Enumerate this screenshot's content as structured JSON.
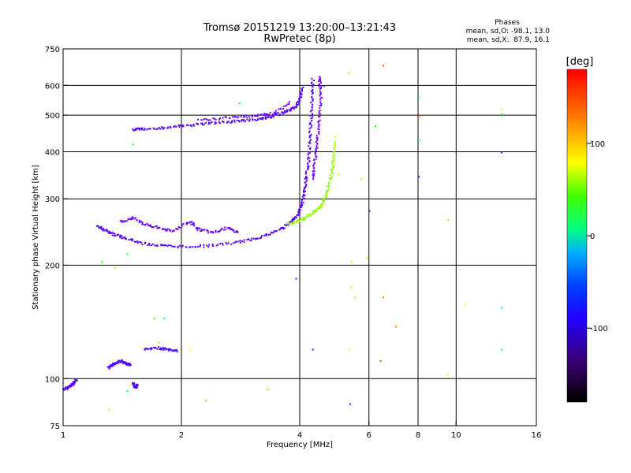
{
  "title": "Tromsø 20151219 13:20:00–13:21:43",
  "subtitle": "RwPretec (8p)",
  "stats": {
    "heading": "Phases",
    "line_o": "mean, sd,O: -98.1, 13.0",
    "line_x": "mean, sd,X:  87.9, 16.1"
  },
  "colorbar": {
    "label": "[deg]",
    "range": [
      -180,
      180
    ],
    "ticks": [
      {
        "value": 100,
        "label": "100"
      },
      {
        "value": 0,
        "label": "0"
      },
      {
        "value": -100,
        "label": "-100"
      }
    ]
  },
  "chart_data": {
    "type": "scatter",
    "xlabel": "Frequency [MHz]",
    "ylabel": "Stationary phase Virtual Height [km]",
    "xscale": "log",
    "yscale": "log",
    "xlim": [
      1,
      16
    ],
    "ylim": [
      75,
      750
    ],
    "x_ticks": [
      {
        "value": 1,
        "label": "1"
      },
      {
        "value": 2,
        "label": "2"
      },
      {
        "value": 4,
        "label": "4"
      },
      {
        "value": 6,
        "label": "6"
      },
      {
        "value": 8,
        "label": "8"
      },
      {
        "value": 10,
        "label": "10"
      },
      {
        "value": 16,
        "label": "16"
      }
    ],
    "x_gridlines": [
      2,
      4,
      6,
      8,
      10
    ],
    "y_ticks": [
      {
        "value": 75,
        "label": "75"
      },
      {
        "value": 100,
        "label": "100"
      },
      {
        "value": 200,
        "label": "200"
      },
      {
        "value": 300,
        "label": "300"
      },
      {
        "value": 400,
        "label": "400"
      },
      {
        "value": 500,
        "label": "500"
      },
      {
        "value": 600,
        "label": "600"
      },
      {
        "value": 750,
        "label": "750"
      }
    ],
    "y_gridlines": [
      100,
      200,
      300,
      400,
      500,
      600
    ],
    "traces": [
      {
        "phase": -100,
        "points": [
          [
            1.0,
            94
          ],
          [
            1.02,
            95
          ],
          [
            1.04,
            96
          ],
          [
            1.06,
            98
          ],
          [
            1.08,
            100
          ]
        ]
      },
      {
        "phase": -110,
        "points": [
          [
            1.3,
            107
          ],
          [
            1.33,
            109
          ],
          [
            1.36,
            111
          ],
          [
            1.4,
            112
          ],
          [
            1.44,
            110
          ],
          [
            1.48,
            109
          ]
        ]
      },
      {
        "phase": -110,
        "points": [
          [
            1.5,
            98
          ],
          [
            1.52,
            95
          ],
          [
            1.54,
            97
          ]
        ]
      },
      {
        "phase": -115,
        "points": [
          [
            1.6,
            120
          ],
          [
            1.75,
            121
          ],
          [
            1.85,
            120
          ],
          [
            1.95,
            119
          ]
        ]
      },
      {
        "phase": -105,
        "points": [
          [
            1.22,
            255
          ],
          [
            1.28,
            248
          ],
          [
            1.35,
            242
          ],
          [
            1.45,
            236
          ],
          [
            1.6,
            229
          ],
          [
            1.8,
            226
          ],
          [
            2.0,
            225
          ],
          [
            2.3,
            226
          ],
          [
            2.7,
            230
          ],
          [
            3.0,
            235
          ],
          [
            3.3,
            242
          ],
          [
            3.6,
            252
          ],
          [
            3.8,
            262
          ],
          [
            3.95,
            275
          ],
          [
            4.05,
            295
          ],
          [
            4.1,
            320
          ],
          [
            4.15,
            350
          ],
          [
            4.2,
            390
          ],
          [
            4.23,
            440
          ],
          [
            4.26,
            500
          ],
          [
            4.28,
            560
          ],
          [
            4.3,
            630
          ]
        ]
      },
      {
        "phase": -95,
        "points": [
          [
            1.4,
            262
          ],
          [
            1.5,
            268
          ],
          [
            1.6,
            258
          ],
          [
            1.75,
            252
          ],
          [
            1.9,
            248
          ],
          [
            2.1,
            262
          ],
          [
            2.2,
            250
          ],
          [
            2.4,
            245
          ],
          [
            2.6,
            252
          ],
          [
            2.8,
            245
          ]
        ]
      },
      {
        "phase": -85,
        "points": [
          [
            4.3,
            340
          ],
          [
            4.35,
            380
          ],
          [
            4.4,
            420
          ],
          [
            4.45,
            470
          ],
          [
            4.5,
            530
          ],
          [
            4.5,
            590
          ],
          [
            4.45,
            640
          ]
        ]
      },
      {
        "phase": 90,
        "points": [
          [
            3.7,
            258
          ],
          [
            3.9,
            262
          ],
          [
            4.1,
            268
          ],
          [
            4.3,
            276
          ],
          [
            4.5,
            288
          ],
          [
            4.6,
            300
          ],
          [
            4.7,
            320
          ],
          [
            4.8,
            350
          ],
          [
            4.85,
            380
          ],
          [
            4.9,
            430
          ]
        ]
      },
      {
        "phase": -105,
        "points": [
          [
            1.5,
            460
          ],
          [
            1.6,
            462
          ],
          [
            1.8,
            465
          ],
          [
            2.0,
            470
          ],
          [
            2.2,
            475
          ],
          [
            2.5,
            480
          ],
          [
            2.8,
            485
          ],
          [
            3.1,
            490
          ],
          [
            3.3,
            495
          ],
          [
            3.5,
            505
          ],
          [
            3.7,
            515
          ],
          [
            3.9,
            530
          ],
          [
            4.0,
            560
          ],
          [
            4.05,
            600
          ]
        ]
      },
      {
        "phase": -90,
        "points": [
          [
            2.2,
            488
          ],
          [
            2.6,
            495
          ],
          [
            3.0,
            500
          ],
          [
            3.4,
            508
          ],
          [
            3.8,
            545
          ]
        ]
      }
    ],
    "scatter": [
      {
        "x": 1.25,
        "y": 205,
        "phase": 60
      },
      {
        "x": 1.35,
        "y": 198,
        "phase": 100
      },
      {
        "x": 1.45,
        "y": 215,
        "phase": 40
      },
      {
        "x": 1.5,
        "y": 420,
        "phase": 60
      },
      {
        "x": 1.7,
        "y": 145,
        "phase": 70
      },
      {
        "x": 1.8,
        "y": 145,
        "phase": 30
      },
      {
        "x": 1.75,
        "y": 125,
        "phase": 100
      },
      {
        "x": 2.1,
        "y": 120,
        "phase": 120
      },
      {
        "x": 2.3,
        "y": 88,
        "phase": 80
      },
      {
        "x": 2.8,
        "y": 540,
        "phase": -20
      },
      {
        "x": 3.3,
        "y": 94,
        "phase": 80
      },
      {
        "x": 1.3,
        "y": 83,
        "phase": 90
      },
      {
        "x": 1.45,
        "y": 93,
        "phase": 40
      },
      {
        "x": 3.9,
        "y": 185,
        "phase": -100
      },
      {
        "x": 4.3,
        "y": 120,
        "phase": -100
      },
      {
        "x": 4.5,
        "y": 520,
        "phase": 100
      },
      {
        "x": 4.6,
        "y": 600,
        "phase": -100
      },
      {
        "x": 4.9,
        "y": 440,
        "phase": 110
      },
      {
        "x": 5.0,
        "y": 350,
        "phase": 100
      },
      {
        "x": 5.3,
        "y": 650,
        "phase": 100
      },
      {
        "x": 5.4,
        "y": 205,
        "phase": 100
      },
      {
        "x": 5.4,
        "y": 175,
        "phase": 100
      },
      {
        "x": 5.5,
        "y": 165,
        "phase": 100
      },
      {
        "x": 5.3,
        "y": 120,
        "phase": 110
      },
      {
        "x": 5.35,
        "y": 86,
        "phase": -110
      },
      {
        "x": 5.7,
        "y": 340,
        "phase": 100
      },
      {
        "x": 5.9,
        "y": 210,
        "phase": 100
      },
      {
        "x": 6.0,
        "y": 280,
        "phase": -100
      },
      {
        "x": 6.2,
        "y": 470,
        "phase": 60
      },
      {
        "x": 6.5,
        "y": 680,
        "phase": 160
      },
      {
        "x": 6.5,
        "y": 165,
        "phase": 150
      },
      {
        "x": 6.4,
        "y": 112,
        "phase": 160
      },
      {
        "x": 7.0,
        "y": 138,
        "phase": 150
      },
      {
        "x": 8.0,
        "y": 560,
        "phase": 40
      },
      {
        "x": 8.0,
        "y": 500,
        "phase": 160
      },
      {
        "x": 8.0,
        "y": 430,
        "phase": 20
      },
      {
        "x": 8.0,
        "y": 345,
        "phase": -110
      },
      {
        "x": 9.5,
        "y": 265,
        "phase": 130
      },
      {
        "x": 9.5,
        "y": 103,
        "phase": 110
      },
      {
        "x": 10.5,
        "y": 158,
        "phase": 110
      },
      {
        "x": 13.0,
        "y": 520,
        "phase": 110
      },
      {
        "x": 13.0,
        "y": 505,
        "phase": 40
      },
      {
        "x": 13.0,
        "y": 400,
        "phase": -120
      },
      {
        "x": 13.0,
        "y": 155,
        "phase": 30
      },
      {
        "x": 13.0,
        "y": 120,
        "phase": 20
      }
    ]
  }
}
